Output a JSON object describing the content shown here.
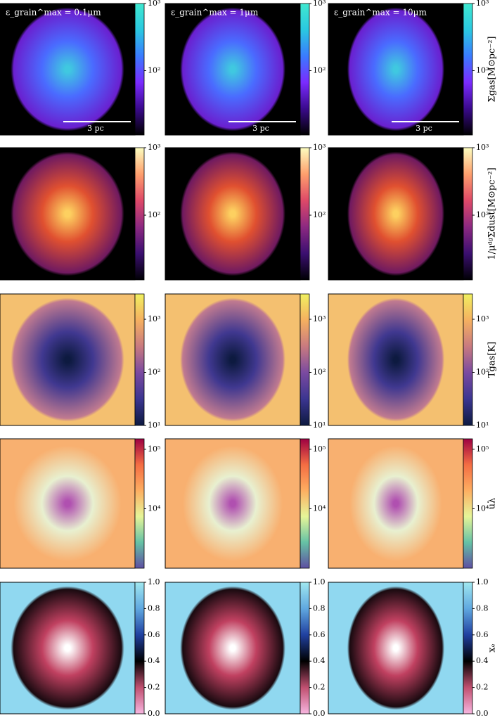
{
  "figure": {
    "columns": [
      "ε_grain^max = 0.1μm",
      "ε_grain^max = 1μm",
      "ε_grain^max = 10μm"
    ],
    "scale_bar": "3 pc",
    "rows": [
      {
        "label": "Σgas[M⊙pc⁻²]",
        "log": true,
        "lim": [
          11,
          1000
        ],
        "ticks": [
          {
            "value": 100,
            "label": "10²"
          },
          {
            "value": 1000,
            "label": "10³"
          }
        ]
      },
      {
        "label": "1/μᵈᵍΣdust[M⊙pc⁻²]",
        "log": true,
        "lim": [
          11,
          1000
        ],
        "ticks": [
          {
            "value": 100,
            "label": "10²"
          },
          {
            "value": 1000,
            "label": "10³"
          }
        ]
      },
      {
        "label": "Tgas[K]",
        "log": true,
        "lim": [
          10,
          3000
        ],
        "ticks": [
          {
            "value": 10,
            "label": "10¹"
          },
          {
            "value": 100,
            "label": "10²"
          },
          {
            "value": 1000,
            "label": "10³"
          }
        ]
      },
      {
        "label": "uλ",
        "log": true,
        "lim": [
          1000,
          150000
        ],
        "ticks": [
          {
            "value": 10000,
            "label": "10⁴"
          },
          {
            "value": 100000,
            "label": "10⁵"
          }
        ]
      },
      {
        "label": "xₑ",
        "log": false,
        "lim": [
          0,
          1
        ],
        "ticks": [
          {
            "value": 0,
            "label": "0.0"
          },
          {
            "value": 0.2,
            "label": "0.2"
          },
          {
            "value": 0.4,
            "label": "0.4"
          },
          {
            "value": 0.6,
            "label": "0.6"
          },
          {
            "value": 0.8,
            "label": "0.8"
          },
          {
            "value": 1,
            "label": "1.0"
          }
        ]
      }
    ]
  }
}
